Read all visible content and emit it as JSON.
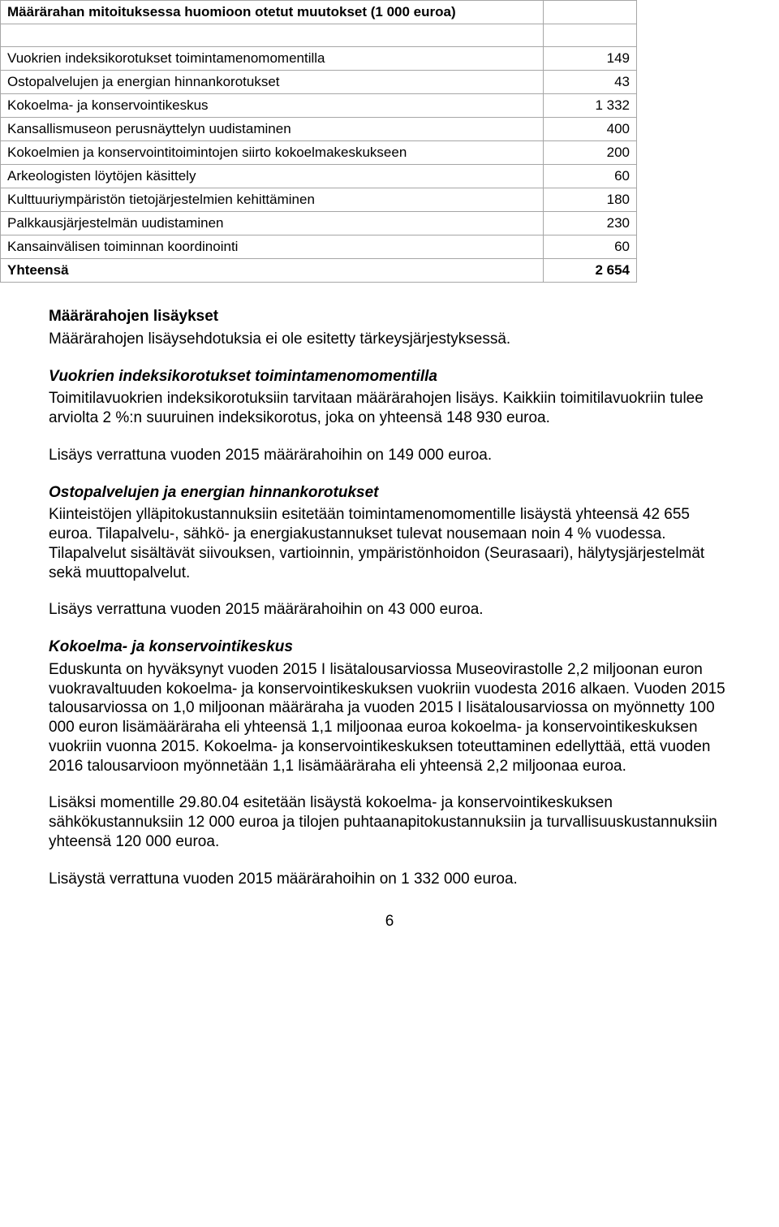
{
  "table": {
    "header": "Määrärahan mitoituksessa huomioon otetut muutokset (1 000 euroa)",
    "rows": [
      {
        "label": "Vuokrien indeksikorotukset toimintamenomomentilla",
        "value": "149"
      },
      {
        "label": "Ostopalvelujen ja energian hinnankorotukset",
        "value": "43"
      },
      {
        "label": "Kokoelma- ja konservointikeskus",
        "value": "1 332"
      },
      {
        "label": "Kansallismuseon perusnäyttelyn uudistaminen",
        "value": "400"
      },
      {
        "label": "Kokoelmien ja konservointitoimintojen siirto kokoelmakeskukseen",
        "value": "200"
      },
      {
        "label": "Arkeologisten löytöjen käsittely",
        "value": "60"
      },
      {
        "label": "Kulttuuriympäristön tietojärjestelmien kehittäminen",
        "value": "180"
      },
      {
        "label": "Palkkausjärjestelmän uudistaminen",
        "value": "230"
      },
      {
        "label": "Kansainvälisen toiminnan koordinointi",
        "value": "60"
      }
    ],
    "total_label": "Yhteensä",
    "total_value": "2 654"
  },
  "body": {
    "h1": "Määrärahojen lisäykset",
    "p1": "Määrärahojen lisäysehdotuksia ei ole esitetty tärkeysjärjestyksessä.",
    "s1_title": "Vuokrien indeksikorotukset toimintamenomomentilla",
    "s1_p1": "Toimitilavuokrien indeksikorotuksiin tarvitaan määrärahojen lisäys. Kaikkiin toimitilavuokriin tulee arviolta 2 %:n suuruinen indeksikorotus, joka on yhteensä 148 930 euroa.",
    "s1_p2": "Lisäys verrattuna vuoden 2015 määrärahoihin on 149 000 euroa.",
    "s2_title": "Ostopalvelujen ja energian hinnankorotukset",
    "s2_p1": "Kiinteistöjen ylläpitokustannuksiin esitetään toimintamenomomentille lisäystä yhteensä 42 655 euroa. Tilapalvelu-, sähkö- ja energiakustannukset tulevat nousemaan noin 4 % vuodessa. Tilapalvelut sisältävät siivouksen, vartioinnin, ympäristönhoidon (Seurasaari), hälytysjärjestelmät sekä muuttopalvelut.",
    "s2_p2": "Lisäys verrattuna vuoden 2015 määrärahoihin on 43 000 euroa.",
    "s3_title": "Kokoelma- ja konservointikeskus",
    "s3_p1": "Eduskunta on hyväksynyt vuoden 2015 I lisätalousarviossa Museovirastolle 2,2 miljoonan euron vuokravaltuuden kokoelma- ja konservointikeskuksen vuokriin vuodesta 2016 alkaen. Vuoden 2015 talousarviossa on 1,0 miljoonan määräraha ja vuoden 2015 I lisätalousarviossa on myönnetty 100 000 euron lisämääräraha eli yhteensä 1,1 miljoonaa euroa kokoelma- ja konservointikeskuksen vuokriin vuonna 2015. Kokoelma- ja konservointikeskuksen toteuttaminen edellyttää, että vuoden 2016 talousarvioon myönnetään 1,1 lisämääräraha eli yhteensä 2,2 miljoonaa euroa.",
    "s3_p2": "Lisäksi momentille 29.80.04 esitetään lisäystä kokoelma- ja konservointikeskuksen sähkökustannuksiin 12 000 euroa ja tilojen puhtaanapitokustannuksiin ja turvallisuuskustannuksiin yhteensä 120 000 euroa.",
    "s3_p3": "Lisäystä verrattuna vuoden 2015 määrärahoihin on 1 332 000 euroa."
  },
  "page_number": "6"
}
